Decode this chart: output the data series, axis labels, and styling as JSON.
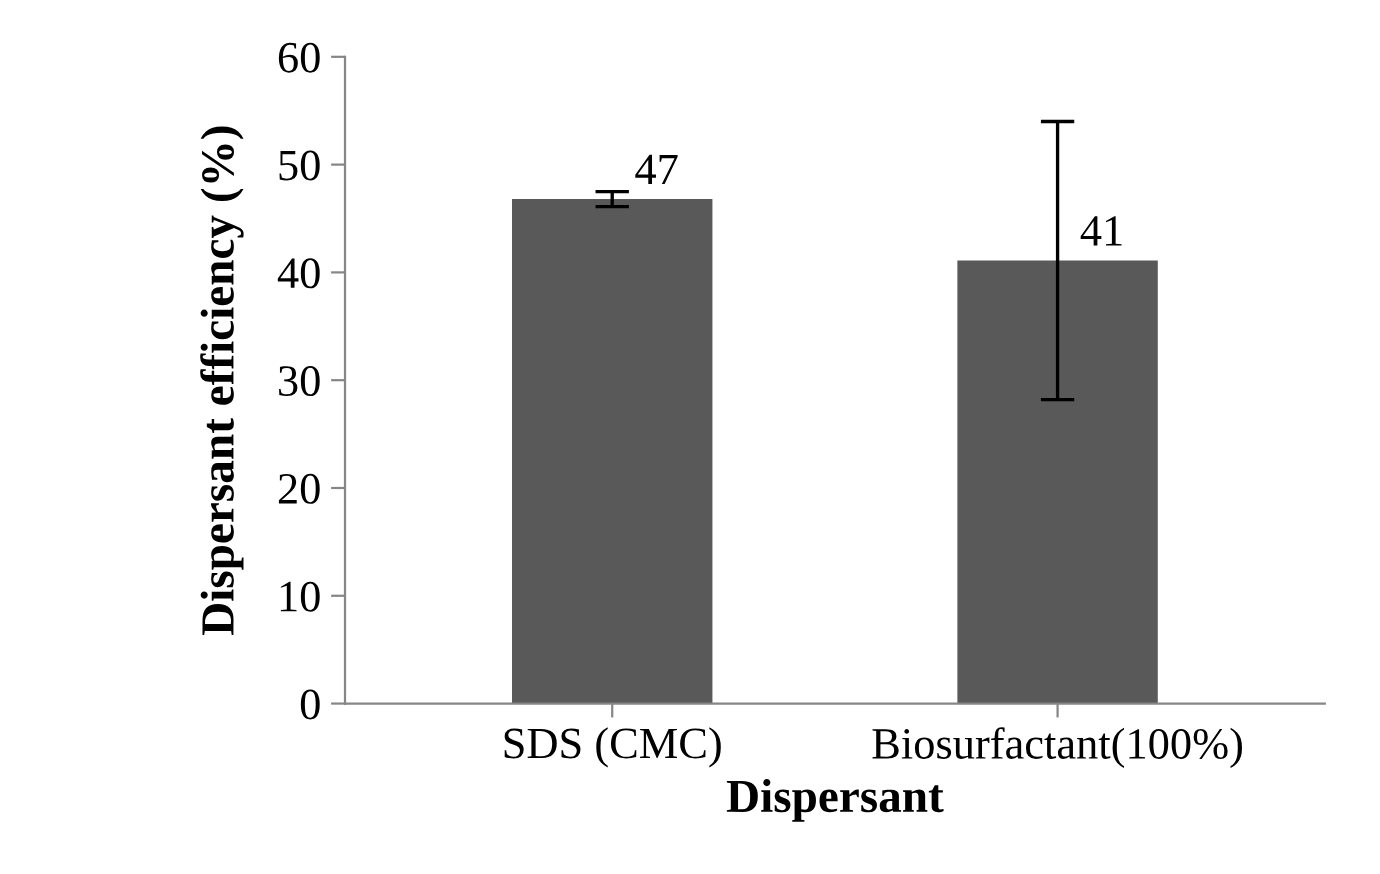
{
  "chart_data": {
    "type": "bar",
    "xlabel": "Dispersant",
    "ylabel": "Dispersant efficiency (%)",
    "categories": [
      "SDS (CMC)",
      "Biosurfactant(100%)"
    ],
    "values": [
      46.8,
      41.1
    ],
    "errors": [
      0.7,
      12.9
    ],
    "value_labels": [
      "47",
      "41"
    ],
    "color": "#595959",
    "ylim": [
      0,
      60
    ],
    "yticks": [
      0,
      10,
      20,
      30,
      40,
      50,
      60
    ],
    "grid": false,
    "legend": false
  }
}
